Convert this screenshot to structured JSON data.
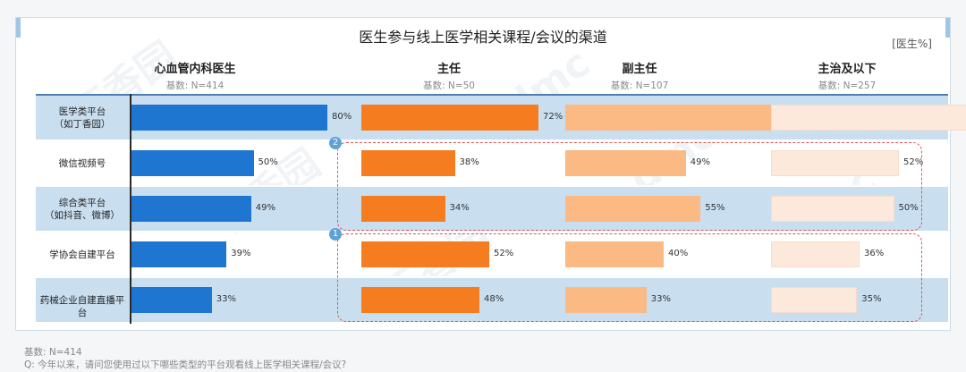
{
  "title": "医生参与线上医学相关课程/会议的渠道",
  "unit": "[医生%]",
  "watermark": {
    "logo_text": "丁香园",
    "mark": "dmc"
  },
  "colors": {
    "bar_all": "#1f76d1",
    "bar_director": "#f57c1f",
    "bar_deputy": "#fbb984",
    "bar_attending": "#fde9dc",
    "band": "#c9dff0",
    "dash": "#e05558",
    "badge": "#5ea2d9"
  },
  "groups": [
    {
      "name": "心血管内科医生",
      "base": "基数:  N=414"
    },
    {
      "name": "主任",
      "base": "基数:  N=50"
    },
    {
      "name": "副主任",
      "base": "基数:  N=107"
    },
    {
      "name": "主治及以下",
      "base": "基数:  N=257"
    }
  ],
  "categories": [
    [
      "医学类平台",
      "（如丁香园）"
    ],
    [
      "微信视频号"
    ],
    [
      "综合类平台",
      "（如抖音、微博）"
    ],
    [
      "学协会自建平台"
    ],
    [
      "药械企业自建直播平台"
    ]
  ],
  "labels": [
    [
      "80%",
      "72%",
      "86%",
      "85%"
    ],
    [
      "50%",
      "38%",
      "49%",
      "52%"
    ],
    [
      "49%",
      "34%",
      "55%",
      "50%"
    ],
    [
      "39%",
      "52%",
      "40%",
      "36%"
    ],
    [
      "33%",
      "48%",
      "33%",
      "35%"
    ]
  ],
  "annotations": [
    {
      "badge": "2",
      "rows": [
        1,
        2
      ]
    },
    {
      "badge": "1",
      "rows": [
        3,
        4
      ]
    }
  ],
  "footer": {
    "base": "基数:  N=414",
    "question": "Q:  今年以来，请问您使用过以下哪些类型的平台观看线上医学相关课程/会议?"
  },
  "chart_data": {
    "type": "bar",
    "orientation": "horizontal",
    "title": "医生参与线上医学相关课程/会议的渠道",
    "ylabel": "[医生%]",
    "categories": [
      "医学类平台（如丁香园）",
      "微信视频号",
      "综合类平台（如抖音、微博）",
      "学协会自建平台",
      "药械企业自建直播平台"
    ],
    "series": [
      {
        "name": "心血管内科医生",
        "values": [
          80,
          50,
          49,
          39,
          33
        ]
      },
      {
        "name": "主任",
        "values": [
          72,
          38,
          34,
          52,
          48
        ]
      },
      {
        "name": "副主任",
        "values": [
          86,
          49,
          55,
          40,
          33
        ]
      },
      {
        "name": "主治及以下",
        "values": [
          85,
          52,
          50,
          36,
          35
        ]
      }
    ],
    "xlim": [
      0,
      100
    ],
    "legend": "column headers",
    "grid": false
  }
}
